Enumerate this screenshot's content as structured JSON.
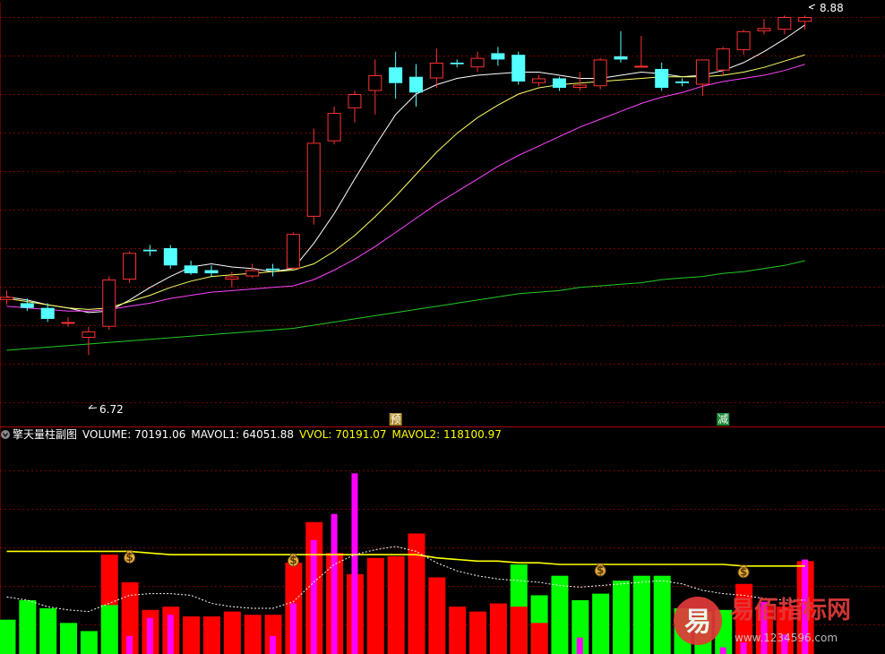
{
  "main_chart": {
    "price_high_label": "8.88",
    "price_low_label": "6.72",
    "markers": [
      {
        "index": 19,
        "text": "预",
        "color": "#b08a2a"
      },
      {
        "index": 35,
        "text": "减",
        "color": "#1b8a3a"
      }
    ]
  },
  "sub_chart": {
    "title": "擎天量柱副图",
    "readouts": [
      {
        "label": "VOLUME: 70191.06",
        "color": "#ffffff"
      },
      {
        "label": "MAVOL1: 64051.88",
        "color": "#ffffff"
      },
      {
        "label": "VVOL: 70191.07",
        "color": "#ffff00"
      },
      {
        "label": "MAVOL2: 118100.97",
        "color": "#ffff00"
      }
    ],
    "money_bag_indices": [
      6,
      14,
      29,
      36
    ]
  },
  "watermark": {
    "logo_char": "易",
    "text": "易佰指标网",
    "url": "www.1234596.com"
  },
  "chart_data": {
    "type": "candlestick_with_volume",
    "price_ylim": [
      6.3,
      8.95
    ],
    "candles": [
      {
        "o": 7.07,
        "h": 7.13,
        "l": 7.04,
        "c": 7.09
      },
      {
        "o": 7.05,
        "h": 7.08,
        "l": 7.0,
        "c": 7.02
      },
      {
        "o": 7.02,
        "h": 7.05,
        "l": 6.93,
        "c": 6.95
      },
      {
        "o": 6.93,
        "h": 6.96,
        "l": 6.9,
        "c": 6.93
      },
      {
        "o": 6.83,
        "h": 6.9,
        "l": 6.72,
        "c": 6.87
      },
      {
        "o": 6.9,
        "h": 7.22,
        "l": 6.88,
        "c": 7.2
      },
      {
        "o": 7.2,
        "h": 7.38,
        "l": 7.18,
        "c": 7.37
      },
      {
        "o": 7.39,
        "h": 7.42,
        "l": 7.35,
        "c": 7.38
      },
      {
        "o": 7.4,
        "h": 7.42,
        "l": 7.27,
        "c": 7.29
      },
      {
        "o": 7.29,
        "h": 7.32,
        "l": 7.23,
        "c": 7.24
      },
      {
        "o": 7.26,
        "h": 7.29,
        "l": 7.22,
        "c": 7.24
      },
      {
        "o": 7.2,
        "h": 7.25,
        "l": 7.15,
        "c": 7.22
      },
      {
        "o": 7.22,
        "h": 7.3,
        "l": 7.21,
        "c": 7.26
      },
      {
        "o": 7.27,
        "h": 7.3,
        "l": 7.22,
        "c": 7.26
      },
      {
        "o": 7.27,
        "h": 7.5,
        "l": 7.27,
        "c": 7.49
      },
      {
        "o": 7.6,
        "h": 8.16,
        "l": 7.55,
        "c": 8.07
      },
      {
        "o": 8.08,
        "h": 8.3,
        "l": 8.06,
        "c": 8.26
      },
      {
        "o": 8.29,
        "h": 8.4,
        "l": 8.2,
        "c": 8.38
      },
      {
        "o": 8.4,
        "h": 8.6,
        "l": 8.25,
        "c": 8.5
      },
      {
        "o": 8.55,
        "h": 8.65,
        "l": 8.35,
        "c": 8.45
      },
      {
        "o": 8.49,
        "h": 8.57,
        "l": 8.3,
        "c": 8.39
      },
      {
        "o": 8.48,
        "h": 8.67,
        "l": 8.42,
        "c": 8.58
      },
      {
        "o": 8.58,
        "h": 8.6,
        "l": 8.55,
        "c": 8.57
      },
      {
        "o": 8.55,
        "h": 8.65,
        "l": 8.52,
        "c": 8.61
      },
      {
        "o": 8.64,
        "h": 8.68,
        "l": 8.56,
        "c": 8.6
      },
      {
        "o": 8.63,
        "h": 8.65,
        "l": 8.44,
        "c": 8.46
      },
      {
        "o": 8.45,
        "h": 8.5,
        "l": 8.43,
        "c": 8.48
      },
      {
        "o": 8.48,
        "h": 8.49,
        "l": 8.4,
        "c": 8.42
      },
      {
        "o": 8.42,
        "h": 8.52,
        "l": 8.4,
        "c": 8.44
      },
      {
        "o": 8.43,
        "h": 8.61,
        "l": 8.41,
        "c": 8.6
      },
      {
        "o": 8.62,
        "h": 8.78,
        "l": 8.58,
        "c": 8.6
      },
      {
        "o": 8.56,
        "h": 8.75,
        "l": 8.55,
        "c": 8.56
      },
      {
        "o": 8.54,
        "h": 8.58,
        "l": 8.4,
        "c": 8.42
      },
      {
        "o": 8.46,
        "h": 8.48,
        "l": 8.43,
        "c": 8.45
      },
      {
        "o": 8.44,
        "h": 8.6,
        "l": 8.37,
        "c": 8.6
      },
      {
        "o": 8.53,
        "h": 8.68,
        "l": 8.5,
        "c": 8.67
      },
      {
        "o": 8.66,
        "h": 8.79,
        "l": 8.63,
        "c": 8.78
      },
      {
        "o": 8.78,
        "h": 8.86,
        "l": 8.76,
        "c": 8.8
      },
      {
        "o": 8.79,
        "h": 8.88,
        "l": 8.76,
        "c": 8.87
      },
      {
        "o": 8.84,
        "h": 8.88,
        "l": 8.79,
        "c": 8.87
      }
    ],
    "ma_lines": [
      {
        "color": "#ffffff",
        "values": [
          7.09,
          7.07,
          7.04,
          7.02,
          6.99,
          7.0,
          7.07,
          7.15,
          7.22,
          7.28,
          7.3,
          7.28,
          7.27,
          7.25,
          7.27,
          7.43,
          7.62,
          7.84,
          8.05,
          8.25,
          8.38,
          8.44,
          8.48,
          8.5,
          8.51,
          8.52,
          8.52,
          8.5,
          8.48,
          8.48,
          8.5,
          8.52,
          8.51,
          8.49,
          8.5,
          8.53,
          8.58,
          8.65,
          8.73,
          8.82
        ]
      },
      {
        "color": "#ffff66",
        "values": [
          7.08,
          7.06,
          7.04,
          7.02,
          7.01,
          7.02,
          7.06,
          7.1,
          7.15,
          7.19,
          7.22,
          7.23,
          7.24,
          7.25,
          7.26,
          7.3,
          7.38,
          7.48,
          7.6,
          7.73,
          7.87,
          8.01,
          8.13,
          8.23,
          8.31,
          8.38,
          8.42,
          8.44,
          8.45,
          8.46,
          8.47,
          8.48,
          8.49,
          8.49,
          8.49,
          8.5,
          8.52,
          8.55,
          8.59,
          8.63
        ]
      },
      {
        "color": "#ff44ff",
        "values": [
          7.03,
          7.02,
          7.01,
          7.0,
          7.0,
          7.01,
          7.03,
          7.05,
          7.08,
          7.1,
          7.12,
          7.13,
          7.14,
          7.15,
          7.16,
          7.2,
          7.26,
          7.33,
          7.41,
          7.5,
          7.59,
          7.68,
          7.76,
          7.84,
          7.92,
          7.99,
          8.05,
          8.11,
          8.17,
          8.22,
          8.27,
          8.32,
          8.36,
          8.39,
          8.43,
          8.46,
          8.48,
          8.5,
          8.53,
          8.57
        ]
      },
      {
        "color": "#22cc22",
        "values": [
          6.75,
          6.76,
          6.77,
          6.78,
          6.79,
          6.8,
          6.81,
          6.82,
          6.83,
          6.84,
          6.85,
          6.86,
          6.87,
          6.88,
          6.89,
          6.91,
          6.93,
          6.95,
          6.97,
          6.99,
          7.01,
          7.03,
          7.05,
          7.07,
          7.09,
          7.11,
          7.12,
          7.13,
          7.15,
          7.16,
          7.17,
          7.18,
          7.2,
          7.21,
          7.22,
          7.24,
          7.25,
          7.27,
          7.29,
          7.32
        ]
      }
    ],
    "volume_ylim": [
      0,
      1.3
    ],
    "volume_bars": [
      {
        "v": 0.2,
        "color": "green"
      },
      {
        "v": 0.32,
        "color": "green"
      },
      {
        "v": 0.27,
        "color": "green"
      },
      {
        "v": 0.18,
        "color": "green"
      },
      {
        "v": 0.13,
        "color": "green"
      },
      {
        "v": 0.6,
        "color": "red",
        "base_green": 0.29
      },
      {
        "v": 0.43,
        "color": "red"
      },
      {
        "v": 0.26,
        "color": "red"
      },
      {
        "v": 0.28,
        "color": "red"
      },
      {
        "v": 0.22,
        "color": "red"
      },
      {
        "v": 0.22,
        "color": "red"
      },
      {
        "v": 0.25,
        "color": "red"
      },
      {
        "v": 0.23,
        "color": "red"
      },
      {
        "v": 0.23,
        "color": "red"
      },
      {
        "v": 0.55,
        "color": "red"
      },
      {
        "v": 0.8,
        "color": "red"
      },
      {
        "v": 0.61,
        "color": "red"
      },
      {
        "v": 0.48,
        "color": "red"
      },
      {
        "v": 0.58,
        "color": "red"
      },
      {
        "v": 0.59,
        "color": "red"
      },
      {
        "v": 0.73,
        "color": "red"
      },
      {
        "v": 0.46,
        "color": "red"
      },
      {
        "v": 0.28,
        "color": "red"
      },
      {
        "v": 0.25,
        "color": "red"
      },
      {
        "v": 0.3,
        "color": "red"
      },
      {
        "v": 0.54,
        "color": "green",
        "top_red": 0.28
      },
      {
        "v": 0.35,
        "color": "green",
        "top_red": 0.18
      },
      {
        "v": 0.47,
        "color": "green"
      },
      {
        "v": 0.32,
        "color": "green"
      },
      {
        "v": 0.36,
        "color": "green"
      },
      {
        "v": 0.44,
        "color": "green"
      },
      {
        "v": 0.47,
        "color": "green"
      },
      {
        "v": 0.47,
        "color": "green"
      },
      {
        "v": 0.27,
        "color": "green"
      },
      {
        "v": 0.25,
        "color": "green"
      },
      {
        "v": 0.26,
        "color": "green"
      },
      {
        "v": 0.42,
        "color": "red"
      },
      {
        "v": 0.28,
        "color": "red"
      },
      {
        "v": 0.28,
        "color": "red"
      },
      {
        "v": 0.56,
        "color": "red"
      }
    ],
    "volume_magenta_bars": [
      {
        "index": 5,
        "v": 0.0
      },
      {
        "index": 6,
        "v": 0.1
      },
      {
        "index": 7,
        "v": 0.21
      },
      {
        "index": 8,
        "v": 0.23
      },
      {
        "index": 13,
        "v": 0.1
      },
      {
        "index": 14,
        "v": 0.3
      },
      {
        "index": 15,
        "v": 0.69
      },
      {
        "index": 16,
        "v": 0.85
      },
      {
        "index": 17,
        "v": 1.1
      },
      {
        "index": 28,
        "v": 0.09
      },
      {
        "index": 35,
        "v": 0.03
      },
      {
        "index": 36,
        "v": 0.06
      },
      {
        "index": 37,
        "v": 0.31
      },
      {
        "index": 38,
        "v": 0.11
      },
      {
        "index": 39,
        "v": 0.57
      }
    ],
    "mavol_yellow": [
      0.62,
      0.62,
      0.62,
      0.62,
      0.62,
      0.62,
      0.62,
      0.61,
      0.6,
      0.6,
      0.6,
      0.6,
      0.6,
      0.6,
      0.6,
      0.6,
      0.6,
      0.6,
      0.6,
      0.6,
      0.6,
      0.58,
      0.57,
      0.56,
      0.56,
      0.55,
      0.55,
      0.54,
      0.54,
      0.54,
      0.54,
      0.54,
      0.54,
      0.54,
      0.54,
      0.54,
      0.53,
      0.53,
      0.53,
      0.53
    ],
    "mavol_white_dotted": [
      0.34,
      0.32,
      0.28,
      0.26,
      0.25,
      0.3,
      0.35,
      0.36,
      0.36,
      0.35,
      0.3,
      0.28,
      0.27,
      0.27,
      0.31,
      0.43,
      0.54,
      0.6,
      0.63,
      0.65,
      0.62,
      0.55,
      0.5,
      0.47,
      0.45,
      0.44,
      0.43,
      0.41,
      0.4,
      0.41,
      0.42,
      0.43,
      0.44,
      0.42,
      0.38,
      0.36,
      0.35,
      0.33,
      0.32,
      0.32
    ]
  }
}
